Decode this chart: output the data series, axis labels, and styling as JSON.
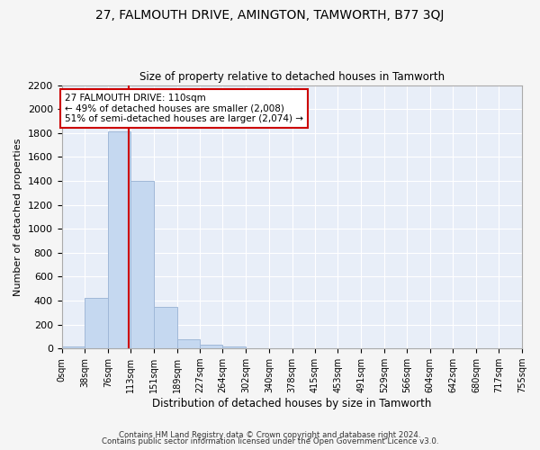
{
  "title": "27, FALMOUTH DRIVE, AMINGTON, TAMWORTH, B77 3QJ",
  "subtitle": "Size of property relative to detached houses in Tamworth",
  "xlabel": "Distribution of detached houses by size in Tamworth",
  "ylabel": "Number of detached properties",
  "bar_edges": [
    0,
    38,
    76,
    113,
    151,
    189,
    227,
    264,
    302,
    340,
    378,
    415,
    453,
    491,
    529,
    566,
    604,
    642,
    680,
    717,
    755
  ],
  "bar_heights": [
    15,
    420,
    1810,
    1400,
    350,
    80,
    30,
    20,
    0,
    0,
    0,
    0,
    0,
    0,
    0,
    0,
    0,
    0,
    0,
    0
  ],
  "bar_color": "#c5d8f0",
  "bar_edgecolor": "#a0b8d8",
  "vline_x": 110,
  "vline_color": "#cc0000",
  "annotation_text": "27 FALMOUTH DRIVE: 110sqm\n← 49% of detached houses are smaller (2,008)\n51% of semi-detached houses are larger (2,074) →",
  "annotation_box_color": "#ffffff",
  "annotation_box_edgecolor": "#cc0000",
  "ylim": [
    0,
    2200
  ],
  "yticks": [
    0,
    200,
    400,
    600,
    800,
    1000,
    1200,
    1400,
    1600,
    1800,
    2000,
    2200
  ],
  "tick_labels": [
    "0sqm",
    "38sqm",
    "76sqm",
    "113sqm",
    "151sqm",
    "189sqm",
    "227sqm",
    "264sqm",
    "302sqm",
    "340sqm",
    "378sqm",
    "415sqm",
    "453sqm",
    "491sqm",
    "529sqm",
    "566sqm",
    "604sqm",
    "642sqm",
    "680sqm",
    "717sqm",
    "755sqm"
  ],
  "background_color": "#e8eef8",
  "grid_color": "#ffffff",
  "footer1": "Contains HM Land Registry data © Crown copyright and database right 2024.",
  "footer2": "Contains public sector information licensed under the Open Government Licence v3.0."
}
